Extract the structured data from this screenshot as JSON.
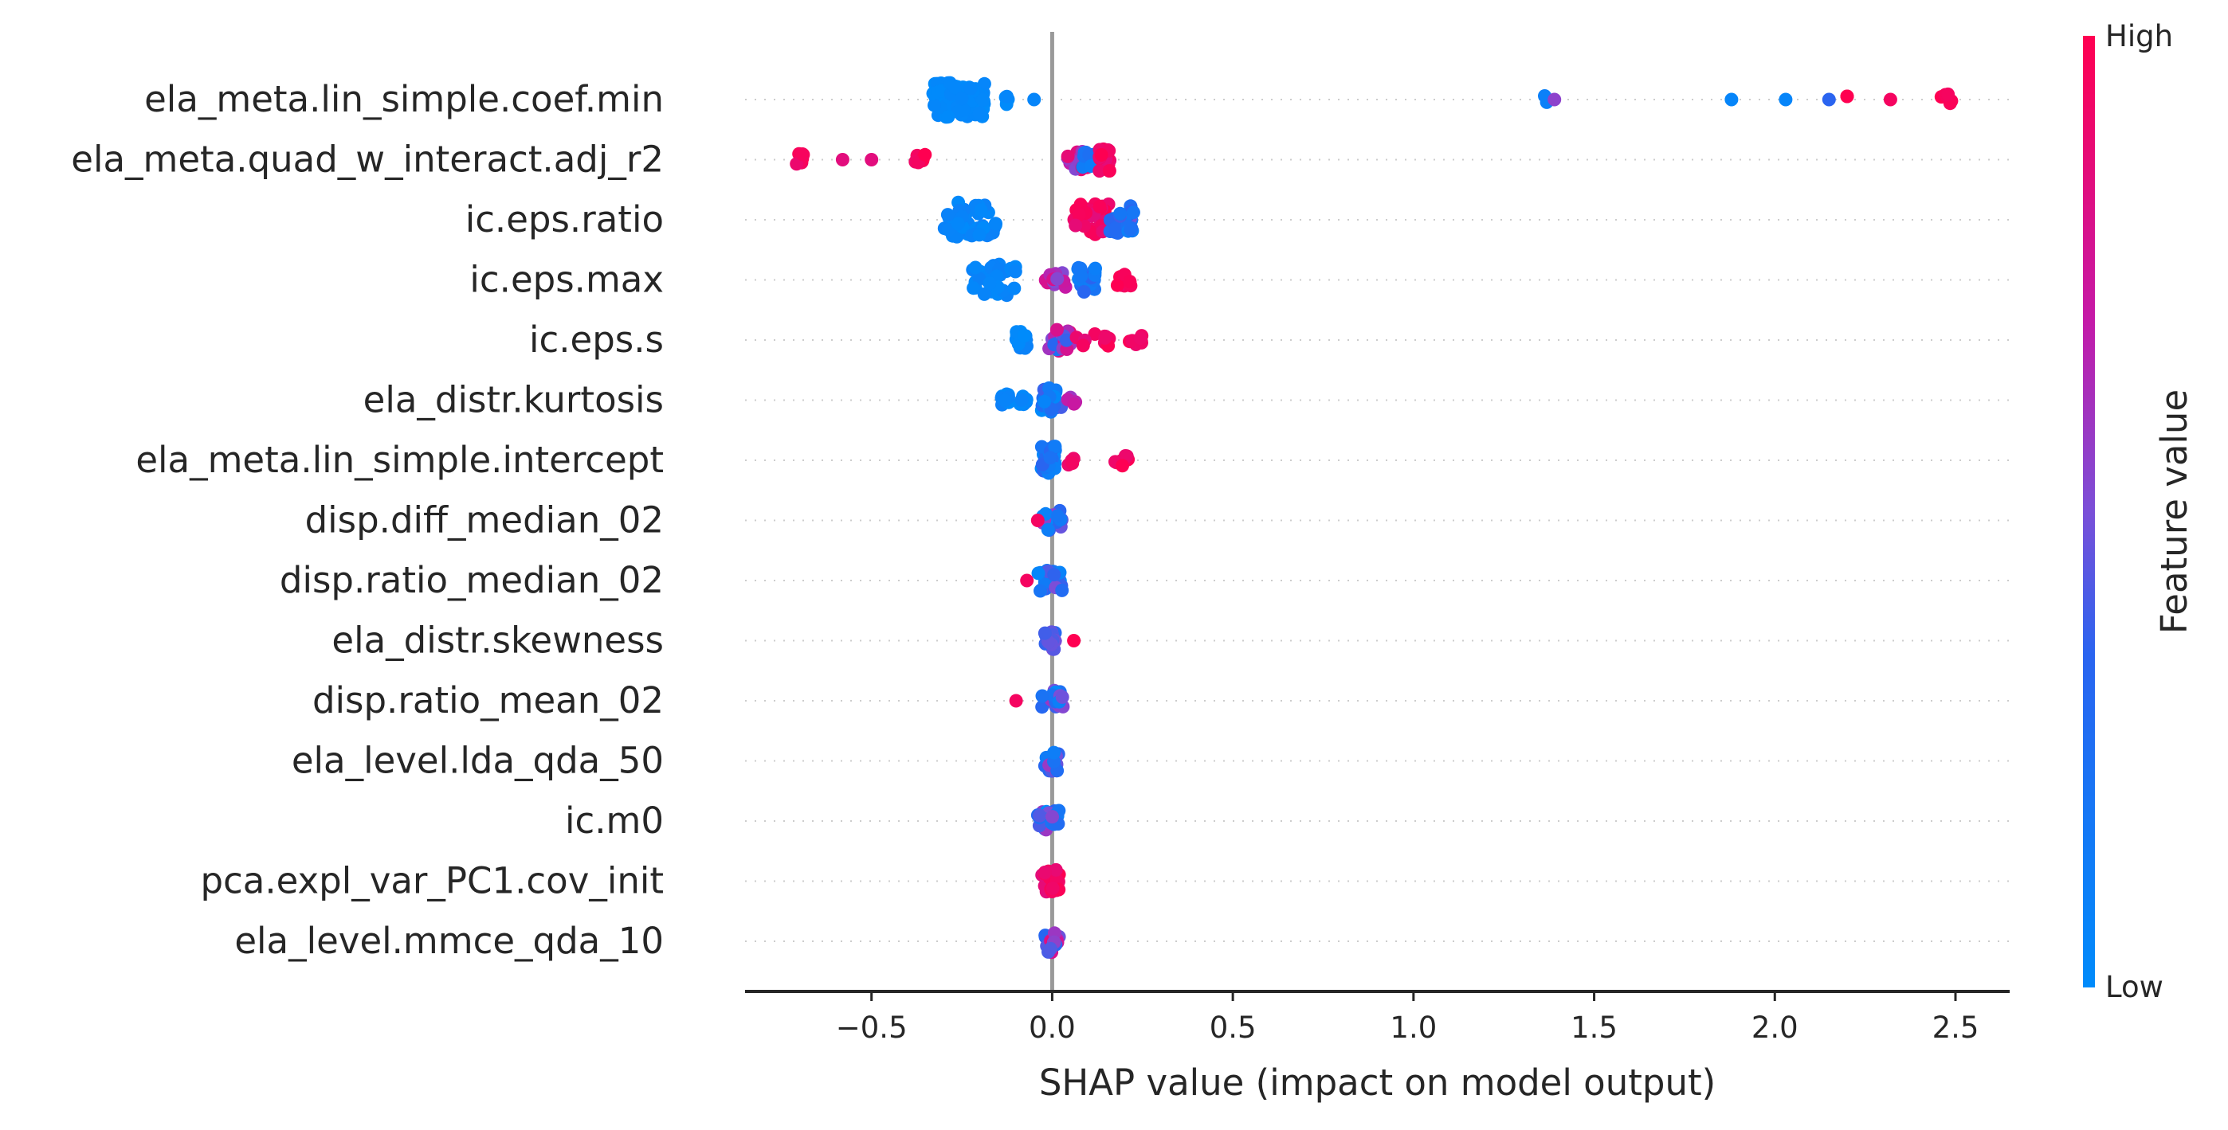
{
  "chart_data": {
    "type": "scatter",
    "subtype": "shap-beeswarm",
    "xlabel": "SHAP value (impact on model output)",
    "xlim": [
      -0.85,
      2.65
    ],
    "x_ticks": [
      -0.5,
      0.0,
      0.5,
      1.0,
      1.5,
      2.0,
      2.5
    ],
    "x_tick_labels": [
      "−0.5",
      "0.0",
      "0.5",
      "1.0",
      "1.5",
      "2.0",
      "2.5"
    ],
    "zero_line_color": "#999999",
    "colorbar": {
      "label": "Feature value",
      "high_label": "High",
      "low_label": "Low",
      "low_color": "#008bfb",
      "high_color": "#ff0051"
    },
    "features": [
      "ela_meta.lin_simple.coef.min",
      "ela_meta.quad_w_interact.adj_r2",
      "ic.eps.ratio",
      "ic.eps.max",
      "ic.eps.s",
      "ela_distr.kurtosis",
      "ela_meta.lin_simple.intercept",
      "disp.diff_median_02",
      "disp.ratio_median_02",
      "ela_distr.skewness",
      "disp.ratio_mean_02",
      "ela_level.lda_qda_50",
      "ic.m0",
      "pca.expl_var_PC1.cov_init",
      "ela_level.mmce_qda_10"
    ],
    "clusters": [
      [
        {
          "x": [
            -0.33,
            -0.18
          ],
          "n": 70,
          "c": [
            0.0,
            0.05
          ]
        },
        {
          "x": [
            -0.14,
            -0.12
          ],
          "n": 5,
          "c": [
            0.0,
            0.05
          ]
        },
        {
          "x": [
            -0.05,
            -0.05
          ],
          "n": 1,
          "c": [
            0.05,
            0.05
          ]
        },
        {
          "x": [
            1.36,
            1.37
          ],
          "n": 2,
          "c": [
            0.1,
            0.1
          ]
        },
        {
          "x": [
            1.39,
            1.39
          ],
          "n": 1,
          "c": [
            0.55,
            0.55
          ]
        },
        {
          "x": [
            1.88,
            1.88
          ],
          "n": 1,
          "c": [
            0.05,
            0.05
          ]
        },
        {
          "x": [
            2.03,
            2.03
          ],
          "n": 1,
          "c": [
            0.05,
            0.05
          ]
        },
        {
          "x": [
            2.15,
            2.15
          ],
          "n": 1,
          "c": [
            0.35,
            0.35
          ]
        },
        {
          "x": [
            2.2,
            2.2
          ],
          "n": 2,
          "c": [
            1.0,
            1.0
          ]
        },
        {
          "x": [
            2.32,
            2.32
          ],
          "n": 1,
          "c": [
            0.95,
            0.95
          ]
        },
        {
          "x": [
            2.46,
            2.49
          ],
          "n": 6,
          "c": [
            0.95,
            1.0
          ]
        }
      ],
      [
        {
          "x": [
            -0.71,
            -0.67
          ],
          "n": 8,
          "c": [
            0.9,
            1.0
          ]
        },
        {
          "x": [
            -0.58,
            -0.58
          ],
          "n": 1,
          "c": [
            0.85,
            0.85
          ]
        },
        {
          "x": [
            -0.5,
            -0.5
          ],
          "n": 1,
          "c": [
            0.85,
            0.85
          ]
        },
        {
          "x": [
            -0.38,
            -0.35
          ],
          "n": 6,
          "c": [
            0.9,
            1.0
          ]
        },
        {
          "x": [
            0.04,
            0.1
          ],
          "n": 20,
          "c": [
            0.5,
            0.95
          ]
        },
        {
          "x": [
            0.08,
            0.12
          ],
          "n": 12,
          "c": [
            0.05,
            0.3
          ]
        },
        {
          "x": [
            0.13,
            0.16
          ],
          "n": 25,
          "c": [
            0.85,
            1.0
          ]
        }
      ],
      [
        {
          "x": [
            -0.3,
            -0.15
          ],
          "n": 45,
          "c": [
            0.0,
            0.1
          ]
        },
        {
          "x": [
            0.06,
            0.16
          ],
          "n": 35,
          "c": [
            0.85,
            1.0
          ]
        },
        {
          "x": [
            0.16,
            0.23
          ],
          "n": 30,
          "c": [
            0.1,
            0.5
          ]
        }
      ],
      [
        {
          "x": [
            -0.22,
            -0.1
          ],
          "n": 35,
          "c": [
            0.0,
            0.1
          ]
        },
        {
          "x": [
            -0.02,
            0.04
          ],
          "n": 12,
          "c": [
            0.4,
            0.9
          ]
        },
        {
          "x": [
            0.07,
            0.12
          ],
          "n": 25,
          "c": [
            0.0,
            0.35
          ]
        },
        {
          "x": [
            0.18,
            0.22
          ],
          "n": 10,
          "c": [
            0.9,
            1.0
          ]
        }
      ],
      [
        {
          "x": [
            -0.1,
            -0.07
          ],
          "n": 15,
          "c": [
            0.0,
            0.1
          ]
        },
        {
          "x": [
            -0.01,
            0.05
          ],
          "n": 25,
          "c": [
            0.2,
            0.9
          ]
        },
        {
          "x": [
            0.06,
            0.16
          ],
          "n": 10,
          "c": [
            0.85,
            1.0
          ]
        },
        {
          "x": [
            0.2,
            0.25
          ],
          "n": 8,
          "c": [
            0.9,
            1.0
          ]
        }
      ],
      [
        {
          "x": [
            -0.14,
            -0.12
          ],
          "n": 10,
          "c": [
            0.0,
            0.1
          ]
        },
        {
          "x": [
            -0.09,
            -0.07
          ],
          "n": 8,
          "c": [
            0.0,
            0.1
          ]
        },
        {
          "x": [
            -0.03,
            0.03
          ],
          "n": 25,
          "c": [
            0.0,
            0.4
          ]
        },
        {
          "x": [
            0.04,
            0.07
          ],
          "n": 6,
          "c": [
            0.4,
            0.9
          ]
        }
      ],
      [
        {
          "x": [
            -0.03,
            0.01
          ],
          "n": 30,
          "c": [
            0.0,
            0.35
          ]
        },
        {
          "x": [
            0.04,
            0.07
          ],
          "n": 4,
          "c": [
            0.9,
            1.0
          ]
        },
        {
          "x": [
            0.17,
            0.21
          ],
          "n": 8,
          "c": [
            0.9,
            1.0
          ]
        }
      ],
      [
        {
          "x": [
            -0.03,
            0.03
          ],
          "n": 20,
          "c": [
            0.0,
            0.6
          ]
        },
        {
          "x": [
            -0.04,
            -0.04
          ],
          "n": 1,
          "c": [
            0.95,
            0.95
          ]
        }
      ],
      [
        {
          "x": [
            -0.04,
            0.03
          ],
          "n": 22,
          "c": [
            0.0,
            0.6
          ]
        },
        {
          "x": [
            -0.07,
            -0.07
          ],
          "n": 1,
          "c": [
            0.95,
            0.95
          ]
        }
      ],
      [
        {
          "x": [
            -0.02,
            0.01
          ],
          "n": 18,
          "c": [
            0.3,
            0.6
          ]
        },
        {
          "x": [
            0.06,
            0.06
          ],
          "n": 1,
          "c": [
            1.0,
            1.0
          ]
        }
      ],
      [
        {
          "x": [
            -0.03,
            0.03
          ],
          "n": 20,
          "c": [
            0.0,
            0.6
          ]
        },
        {
          "x": [
            -0.1,
            -0.1
          ],
          "n": 1,
          "c": [
            0.95,
            0.95
          ]
        }
      ],
      [
        {
          "x": [
            -0.02,
            0.02
          ],
          "n": 20,
          "c": [
            0.0,
            0.6
          ]
        }
      ],
      [
        {
          "x": [
            -0.04,
            0.02
          ],
          "n": 22,
          "c": [
            0.0,
            0.6
          ]
        }
      ],
      [
        {
          "x": [
            -0.03,
            0.02
          ],
          "n": 25,
          "c": [
            0.85,
            1.0
          ]
        }
      ],
      [
        {
          "x": [
            -0.02,
            0.02
          ],
          "n": 22,
          "c": [
            0.3,
            0.95
          ]
        }
      ]
    ]
  }
}
